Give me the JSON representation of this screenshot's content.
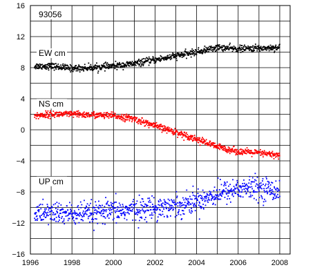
{
  "chart_data": {
    "type": "scatter",
    "title": "",
    "xlabel": "",
    "ylabel": "",
    "station_id": "93056",
    "xlim": [
      1996,
      2008.5
    ],
    "ylim": [
      -16,
      16
    ],
    "x_ticks": [
      1996,
      1998,
      2000,
      2002,
      2004,
      2006,
      2008
    ],
    "x_tick_labels": [
      "1996",
      "1998",
      "2000",
      "2002",
      "2004",
      "2006",
      "2008"
    ],
    "y_ticks": [
      -16,
      -12,
      -8,
      -4,
      0,
      4,
      8,
      12,
      16
    ],
    "y_tick_labels": [
      "−16",
      "−12",
      "−8",
      "−4",
      "0",
      "4",
      "8",
      "12",
      "16"
    ],
    "grid": true,
    "x_minor_step": 1,
    "y_minor_step": 2,
    "series": [
      {
        "name": "EW cm",
        "color": "#000000",
        "label_at": [
          1996.4,
          9.5
        ],
        "trend": [
          [
            1996.2,
            8.2
          ],
          [
            1997.0,
            8.2
          ],
          [
            1998.0,
            7.9
          ],
          [
            1999.0,
            8.0
          ],
          [
            2000.0,
            8.2
          ],
          [
            2001.0,
            8.5
          ],
          [
            2002.0,
            9.0
          ],
          [
            2003.0,
            9.5
          ],
          [
            2004.0,
            10.0
          ],
          [
            2005.0,
            10.6
          ],
          [
            2006.0,
            10.4
          ],
          [
            2007.0,
            10.5
          ],
          [
            2008.0,
            10.6
          ]
        ],
        "spread": 0.35
      },
      {
        "name": "NS cm",
        "color": "#ff0000",
        "label_at": [
          1996.4,
          3.0
        ],
        "trend": [
          [
            1996.2,
            1.8
          ],
          [
            1997.0,
            2.0
          ],
          [
            1998.0,
            2.0
          ],
          [
            1999.0,
            1.9
          ],
          [
            2000.0,
            1.8
          ],
          [
            2001.0,
            1.4
          ],
          [
            2002.0,
            0.5
          ],
          [
            2003.0,
            -0.3
          ],
          [
            2004.0,
            -1.2
          ],
          [
            2005.0,
            -2.2
          ],
          [
            2006.0,
            -2.8
          ],
          [
            2007.0,
            -3.0
          ],
          [
            2008.0,
            -3.3
          ]
        ],
        "spread": 0.35
      },
      {
        "name": "UP cm",
        "color": "#0000ff",
        "label_at": [
          1996.4,
          -7.0
        ],
        "trend": [
          [
            1996.2,
            -10.8
          ],
          [
            1997.0,
            -10.7
          ],
          [
            1998.0,
            -10.9
          ],
          [
            1999.0,
            -10.8
          ],
          [
            2000.0,
            -10.5
          ],
          [
            2001.0,
            -10.3
          ],
          [
            2002.0,
            -10.0
          ],
          [
            2003.0,
            -9.8
          ],
          [
            2004.0,
            -9.2
          ],
          [
            2005.0,
            -8.2
          ],
          [
            2006.0,
            -7.6
          ],
          [
            2007.0,
            -7.5
          ],
          [
            2008.0,
            -7.8
          ]
        ],
        "spread": 1.2
      }
    ],
    "samples_per_series": 900
  }
}
